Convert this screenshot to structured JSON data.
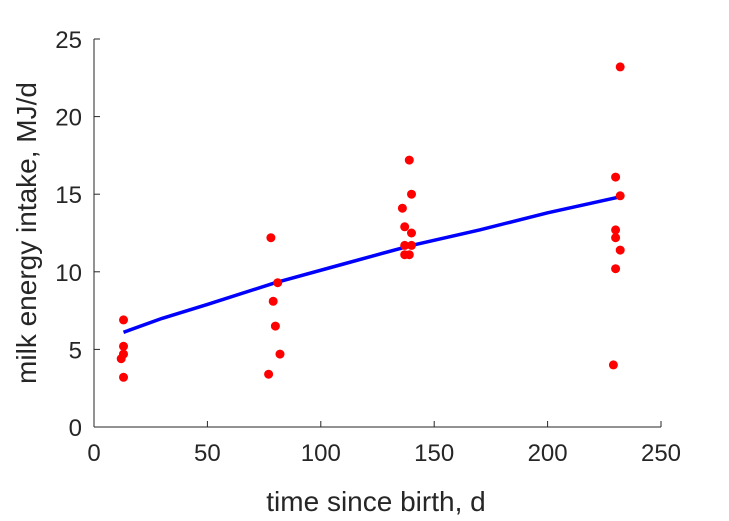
{
  "chart_data": {
    "type": "scatter",
    "title": "",
    "xlabel": "time since birth, d",
    "ylabel": "milk energy intake, MJ/d",
    "xlim": [
      0,
      250
    ],
    "ylim": [
      0,
      25
    ],
    "xticks": [
      0,
      50,
      100,
      150,
      200,
      250
    ],
    "yticks": [
      0,
      5,
      10,
      15,
      20,
      25
    ],
    "grid": false,
    "legend": "none",
    "series": [
      {
        "kind": "scatter",
        "color": "#ff0000",
        "points": [
          [
            12,
            4.4
          ],
          [
            13,
            6.9
          ],
          [
            13,
            5.2
          ],
          [
            13,
            4.7
          ],
          [
            13,
            3.2
          ],
          [
            78,
            12.2
          ],
          [
            77,
            3.4
          ],
          [
            79,
            8.1
          ],
          [
            80,
            6.5
          ],
          [
            81,
            9.3
          ],
          [
            82,
            4.7
          ],
          [
            136,
            14.1
          ],
          [
            137,
            12.9
          ],
          [
            137,
            11.7
          ],
          [
            137,
            11.1
          ],
          [
            139,
            17.2
          ],
          [
            140,
            15.0
          ],
          [
            140,
            12.5
          ],
          [
            140,
            11.7
          ],
          [
            139,
            11.1
          ],
          [
            229,
            4.0
          ],
          [
            230,
            16.1
          ],
          [
            230,
            12.7
          ],
          [
            230,
            12.2
          ],
          [
            230,
            10.2
          ],
          [
            232,
            23.2
          ],
          [
            232,
            14.9
          ],
          [
            232,
            11.4
          ]
        ]
      },
      {
        "kind": "line",
        "color": "#0000ff",
        "points": [
          [
            13,
            6.1
          ],
          [
            30,
            7.0
          ],
          [
            50,
            7.9
          ],
          [
            80,
            9.3
          ],
          [
            110,
            10.5
          ],
          [
            140,
            11.7
          ],
          [
            170,
            12.7
          ],
          [
            200,
            13.8
          ],
          [
            231,
            14.8
          ]
        ]
      }
    ]
  }
}
